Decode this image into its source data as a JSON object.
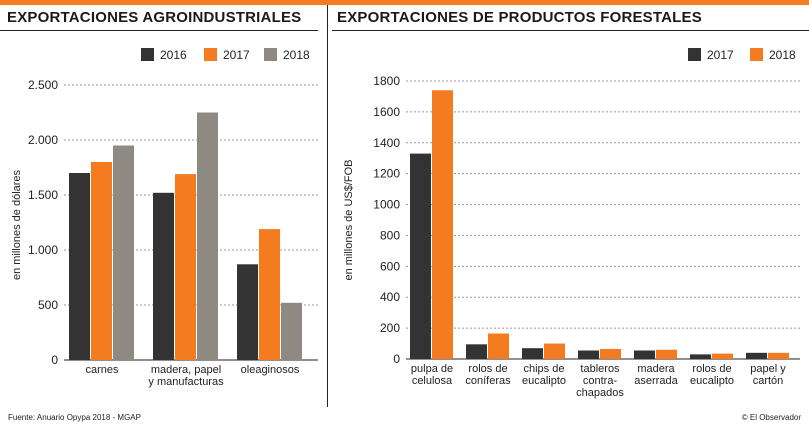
{
  "colors": {
    "s2016": "#333333",
    "s2017": "#f47b20",
    "s2018": "#8f8983",
    "grid": "#9a9a9a",
    "accent": "#f47b20"
  },
  "chart_data": [
    {
      "type": "bar",
      "title": "EXPORTACIONES AGROINDUSTRIALES",
      "ylabel": "en millones de dólares",
      "ylim": [
        0,
        2500
      ],
      "yticks": [
        0,
        500,
        1000,
        1500,
        2000,
        2500
      ],
      "ytick_labels": [
        "0",
        "500",
        "1.000",
        "1.500",
        "2.000",
        "2.500"
      ],
      "grid": true,
      "legend": "top-right",
      "categories": [
        [
          "carnes"
        ],
        [
          "madera, papel",
          "y manufacturas"
        ],
        [
          "oleaginosos"
        ]
      ],
      "series": [
        {
          "name": "2016",
          "color": "#333333",
          "values": [
            1700,
            1520,
            870
          ]
        },
        {
          "name": "2017",
          "color": "#f47b20",
          "values": [
            1800,
            1690,
            1190
          ]
        },
        {
          "name": "2018",
          "color": "#8f8983",
          "values": [
            1950,
            2250,
            520
          ]
        }
      ]
    },
    {
      "type": "bar",
      "title": "EXPORTACIONES DE PRODUCTOS FORESTALES",
      "ylabel": "en millones de US$/FOB",
      "ylim": [
        0,
        1800
      ],
      "yticks": [
        0,
        200,
        400,
        600,
        800,
        1000,
        1200,
        1400,
        1600,
        1800
      ],
      "ytick_labels": [
        "0",
        "200",
        "400",
        "600",
        "800",
        "1000",
        "1200",
        "1400",
        "1600",
        "1800"
      ],
      "grid": true,
      "legend": "top-right",
      "categories": [
        [
          "pulpa de",
          "celulosa"
        ],
        [
          "rolos de",
          "coníferas"
        ],
        [
          "chips de",
          "eucalipto"
        ],
        [
          "tableros",
          "contra-",
          "chapados"
        ],
        [
          "madera",
          "aserrada"
        ],
        [
          "rolos de",
          "eucalipto"
        ],
        [
          "papel y",
          "cartón"
        ]
      ],
      "series": [
        {
          "name": "2017",
          "color": "#333333",
          "values": [
            1330,
            95,
            70,
            55,
            55,
            30,
            40
          ]
        },
        {
          "name": "2018",
          "color": "#f47b20",
          "values": [
            1740,
            165,
            100,
            65,
            60,
            35,
            40
          ]
        }
      ]
    }
  ],
  "footer": {
    "source": "Fuente: Anuario Opypa 2018 - MGAP",
    "credit": "© El Observador"
  }
}
